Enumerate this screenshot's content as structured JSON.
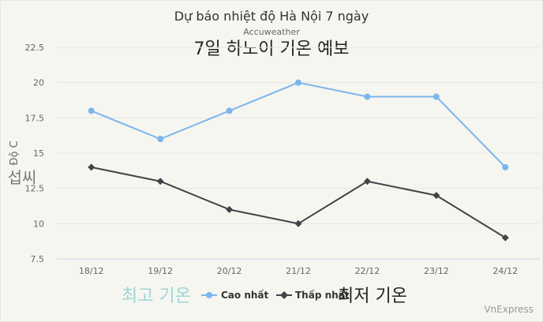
{
  "chart_data": {
    "type": "line",
    "title": "Dự báo nhiệt độ Hà Nội 7 ngày",
    "subtitle": "Accuweather",
    "overlay_title": "7일 하노이 기온 예보",
    "ylabel": "Độ C",
    "ylabel_overlay": "섭씨",
    "categories": [
      "18/12",
      "19/12",
      "20/12",
      "21/12",
      "22/12",
      "23/12",
      "24/12"
    ],
    "yticks": [
      "7.5",
      "10",
      "12.5",
      "15",
      "17.5",
      "20",
      "22.5"
    ],
    "ylim": [
      7.5,
      22.5
    ],
    "grid": true,
    "legend_position": "bottom",
    "series": [
      {
        "name": "Cao nhất",
        "overlay_name": "최고 기온",
        "color": "#7cb5ec",
        "marker": "circle",
        "values": [
          18,
          16,
          18,
          20,
          19,
          19,
          14
        ]
      },
      {
        "name": "Thấp nhất",
        "overlay_name": "최저 기온",
        "color": "#434348",
        "marker": "diamond",
        "values": [
          14,
          13,
          11,
          10,
          13,
          12,
          9
        ]
      }
    ],
    "credit": "VnExpress"
  }
}
